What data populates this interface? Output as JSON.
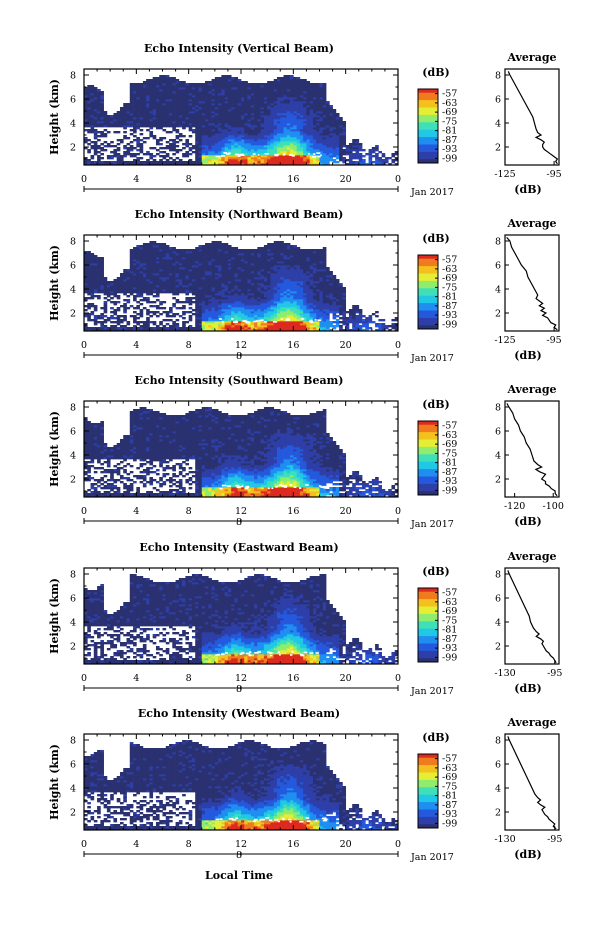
{
  "colors": {
    "colormap": [
      "#2a3170",
      "#2e3fa8",
      "#2459de",
      "#1e8ff0",
      "#20c8e6",
      "#3fe0b8",
      "#8fec6c",
      "#e4ee34",
      "#f4c01e",
      "#f07a1e",
      "#de2a1e"
    ],
    "background_clear": "#ffffff",
    "axis": "#000000"
  },
  "figure": {
    "date_label": "Jan 2017",
    "date_day": "8",
    "bottom_xlabel": "Local Time"
  },
  "chart_data": [
    {
      "type": "heatmap",
      "title": "Echo Intensity (Vertical Beam)",
      "ylabel": "Height (km)",
      "xticks": [
        "0",
        "4",
        "8",
        "12",
        "16",
        "20",
        "0"
      ],
      "yticks": [
        "2",
        "4",
        "6",
        "8"
      ],
      "xlim": [
        0,
        24
      ],
      "ylim": [
        0.5,
        8.5
      ],
      "colorbar": {
        "label": "(dB)",
        "ticks": [
          "-57",
          "-63",
          "-69",
          "-75",
          "-81",
          "-87",
          "-93",
          "-99"
        ],
        "range": [
          -102,
          -54
        ]
      },
      "average_profile": {
        "title": "Average",
        "xlabel": "(dB)",
        "xticks": [
          "-125",
          "-95"
        ],
        "xlim": [
          -125,
          -92
        ],
        "yticks": [
          "2",
          "4",
          "6",
          "8"
        ],
        "ylim": [
          0.5,
          8.5
        ],
        "height": [
          0.6,
          0.8,
          1.0,
          1.2,
          1.4,
          1.6,
          1.8,
          2.0,
          2.2,
          2.4,
          2.6,
          2.8,
          3.0,
          3.2,
          3.5,
          4.0,
          4.5,
          5.0,
          5.5,
          6.0,
          6.5,
          7.0,
          7.5,
          8.0,
          8.3
        ],
        "db": [
          -93,
          -94,
          -93,
          -95,
          -97,
          -99,
          -101,
          -102,
          -102,
          -101,
          -103,
          -106,
          -103,
          -105,
          -106,
          -107,
          -108,
          -110,
          -112,
          -114,
          -116,
          -118,
          -120,
          -122,
          -123
        ]
      }
    },
    {
      "type": "heatmap",
      "title": "Echo Intensity (Northward Beam)",
      "ylabel": "Height (km)",
      "xticks": [
        "0",
        "4",
        "8",
        "12",
        "16",
        "20",
        "0"
      ],
      "yticks": [
        "2",
        "4",
        "6",
        "8"
      ],
      "xlim": [
        0,
        24
      ],
      "ylim": [
        0.5,
        8.5
      ],
      "colorbar": {
        "label": "(dB)",
        "ticks": [
          "-57",
          "-63",
          "-69",
          "-75",
          "-81",
          "-87",
          "-93",
          "-99"
        ],
        "range": [
          -102,
          -54
        ]
      },
      "average_profile": {
        "title": "Average",
        "xlabel": "(dB)",
        "xticks": [
          "-125",
          "-95"
        ],
        "xlim": [
          -125,
          -92
        ],
        "yticks": [
          "2",
          "4",
          "6",
          "8"
        ],
        "ylim": [
          0.5,
          8.5
        ],
        "height": [
          0.6,
          0.8,
          1.0,
          1.2,
          1.4,
          1.6,
          1.8,
          2.0,
          2.2,
          2.4,
          2.6,
          2.8,
          3.0,
          3.2,
          3.5,
          4.0,
          4.5,
          5.0,
          5.5,
          6.0,
          6.5,
          7.0,
          7.5,
          8.0,
          8.3
        ],
        "db": [
          -93,
          -95,
          -94,
          -97,
          -98,
          -99,
          -102,
          -100,
          -103,
          -101,
          -104,
          -102,
          -104,
          -106,
          -105,
          -107,
          -109,
          -111,
          -112,
          -115,
          -117,
          -119,
          -121,
          -122,
          -124
        ]
      }
    },
    {
      "type": "heatmap",
      "title": "Echo Intensity (Southward Beam)",
      "ylabel": "Height (km)",
      "xticks": [
        "0",
        "4",
        "8",
        "12",
        "16",
        "20",
        "0"
      ],
      "yticks": [
        "2",
        "4",
        "6",
        "8"
      ],
      "xlim": [
        0,
        24
      ],
      "ylim": [
        0.5,
        8.5
      ],
      "colorbar": {
        "label": "(dB)",
        "ticks": [
          "-57",
          "-63",
          "-69",
          "-75",
          "-81",
          "-87",
          "-93",
          "-99"
        ],
        "range": [
          -102,
          -54
        ]
      },
      "average_profile": {
        "title": "Average",
        "xlabel": "(dB)",
        "xticks": [
          "-120",
          "-100"
        ],
        "xlim": [
          -125,
          -97
        ],
        "yticks": [
          "2",
          "4",
          "6",
          "8"
        ],
        "ylim": [
          0.5,
          8.5
        ],
        "height": [
          0.6,
          0.8,
          1.0,
          1.2,
          1.4,
          1.6,
          1.8,
          2.0,
          2.2,
          2.4,
          2.6,
          2.8,
          3.0,
          3.2,
          3.5,
          4.0,
          4.5,
          5.0,
          5.5,
          6.0,
          6.5,
          7.0,
          7.5,
          8.0,
          8.3
        ],
        "db": [
          -98,
          -99,
          -99,
          -101,
          -102,
          -104,
          -104,
          -106,
          -105,
          -104,
          -107,
          -109,
          -106,
          -108,
          -110,
          -111,
          -112,
          -114,
          -115,
          -117,
          -118,
          -120,
          -121,
          -123,
          -124
        ]
      }
    },
    {
      "type": "heatmap",
      "title": "Echo Intensity (Eastward Beam)",
      "ylabel": "Height (km)",
      "xticks": [
        "0",
        "4",
        "8",
        "12",
        "16",
        "20",
        "0"
      ],
      "yticks": [
        "2",
        "4",
        "6",
        "8"
      ],
      "xlim": [
        0,
        24
      ],
      "ylim": [
        0.5,
        8.5
      ],
      "colorbar": {
        "label": "(dB)",
        "ticks": [
          "-57",
          "-63",
          "-69",
          "-75",
          "-81",
          "-87",
          "-93",
          "-99"
        ],
        "range": [
          -102,
          -54
        ]
      },
      "average_profile": {
        "title": "Average",
        "xlabel": "(dB)",
        "xticks": [
          "-130",
          "-95"
        ],
        "xlim": [
          -130,
          -92
        ],
        "yticks": [
          "2",
          "4",
          "6",
          "8"
        ],
        "ylim": [
          0.5,
          8.5
        ],
        "height": [
          0.6,
          0.8,
          1.0,
          1.2,
          1.4,
          1.6,
          1.8,
          2.0,
          2.2,
          2.4,
          2.6,
          2.8,
          3.0,
          3.2,
          3.5,
          4.0,
          4.5,
          5.0,
          5.5,
          6.0,
          6.5,
          7.0,
          7.5,
          8.0,
          8.3
        ],
        "db": [
          -94,
          -95,
          -96,
          -98,
          -99,
          -101,
          -102,
          -103,
          -104,
          -103,
          -105,
          -108,
          -106,
          -108,
          -110,
          -112,
          -113,
          -115,
          -117,
          -119,
          -121,
          -123,
          -125,
          -127,
          -128
        ]
      }
    },
    {
      "type": "heatmap",
      "title": "Echo Intensity (Westward Beam)",
      "ylabel": "Height (km)",
      "xticks": [
        "0",
        "4",
        "8",
        "12",
        "16",
        "20",
        "0"
      ],
      "yticks": [
        "2",
        "4",
        "6",
        "8"
      ],
      "xlim": [
        0,
        24
      ],
      "ylim": [
        0.5,
        8.5
      ],
      "colorbar": {
        "label": "(dB)",
        "ticks": [
          "-57",
          "-63",
          "-69",
          "-75",
          "-81",
          "-87",
          "-93",
          "-99"
        ],
        "range": [
          -102,
          -54
        ]
      },
      "average_profile": {
        "title": "Average",
        "xlabel": "(dB)",
        "xticks": [
          "-130",
          "-95"
        ],
        "xlim": [
          -130,
          -92
        ],
        "yticks": [
          "2",
          "4",
          "6",
          "8"
        ],
        "ylim": [
          0.5,
          8.5
        ],
        "height": [
          0.6,
          0.8,
          1.0,
          1.2,
          1.4,
          1.6,
          1.8,
          2.0,
          2.2,
          2.4,
          2.6,
          2.8,
          3.0,
          3.2,
          3.5,
          4.0,
          4.5,
          5.0,
          5.5,
          6.0,
          6.5,
          7.0,
          7.5,
          8.0,
          8.3
        ],
        "db": [
          -94,
          -96,
          -95,
          -97,
          -99,
          -100,
          -102,
          -103,
          -104,
          -102,
          -105,
          -107,
          -105,
          -107,
          -109,
          -111,
          -113,
          -115,
          -117,
          -119,
          -121,
          -123,
          -125,
          -127,
          -128
        ]
      }
    }
  ]
}
